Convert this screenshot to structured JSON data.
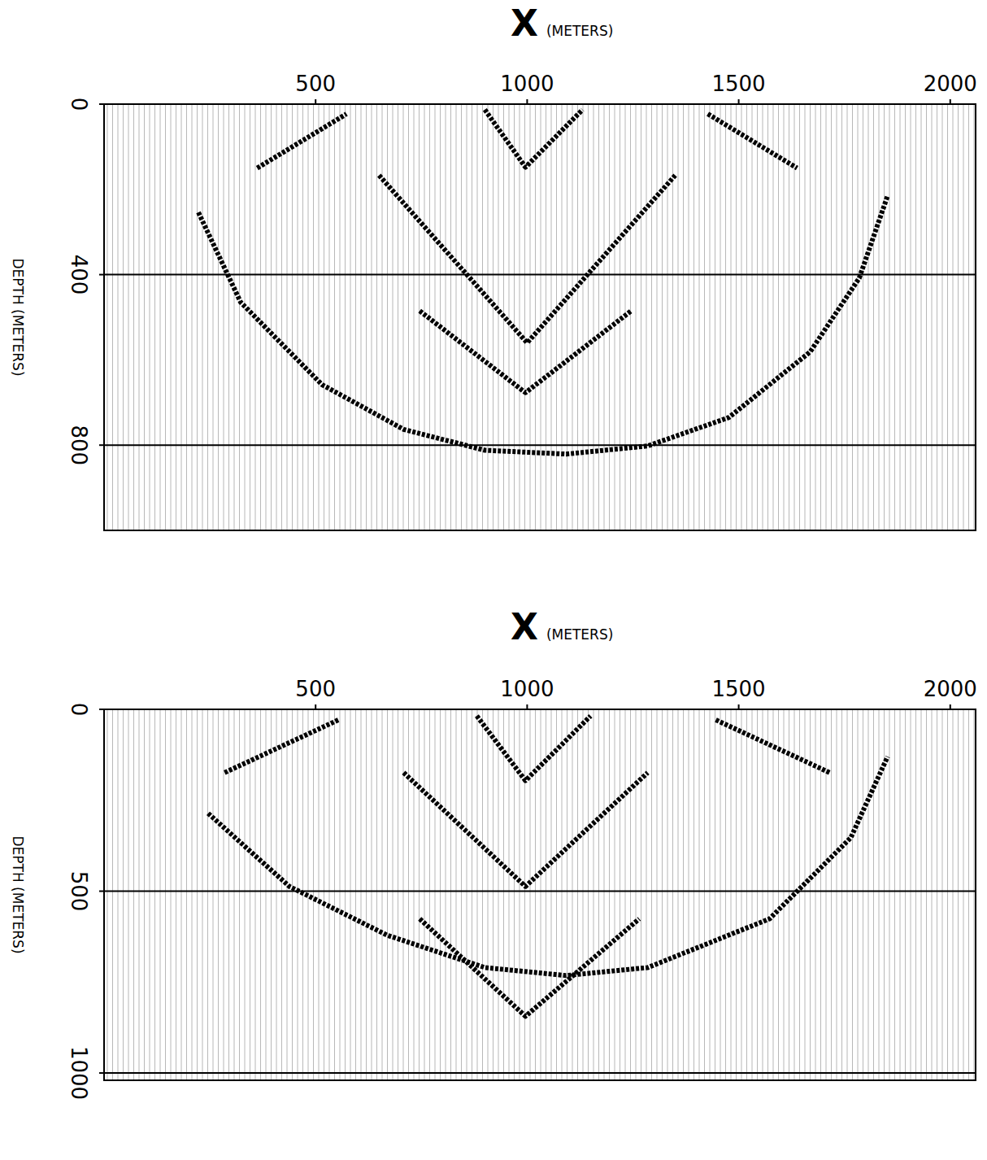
{
  "chart_data": [
    {
      "type": "line",
      "x_label": "X",
      "x_label_unit": "(METERS)",
      "y_label": "DEPTH (METERS)",
      "xlim": [
        0,
        2060
      ],
      "xticks": [
        500,
        1000,
        1500,
        2000
      ],
      "ylim": [
        0,
        1000
      ],
      "yticks": [
        0,
        400,
        800
      ],
      "grid": true,
      "series": [
        {
          "color": "#000000",
          "line_style": "dashed",
          "x": [
            223,
            323,
            515,
            708,
            900,
            1092,
            1285,
            1477,
            1669,
            1785,
            1852
          ],
          "values": [
            254,
            465,
            658,
            763,
            812,
            821,
            802,
            735,
            581,
            408,
            215
          ]
        },
        {
          "color": "#000000",
          "line_style": "dashed",
          "x": [
            362,
            573
          ],
          "values": [
            150,
            23
          ]
        },
        {
          "color": "#000000",
          "line_style": "dashed",
          "x": [
            1427,
            1638
          ],
          "values": [
            23,
            150
          ]
        },
        {
          "color": "#000000",
          "line_style": "dashed",
          "x": [
            900,
            996,
            1131
          ],
          "values": [
            13,
            148,
            13
          ]
        },
        {
          "color": "#000000",
          "line_style": "dashed",
          "x": [
            650,
            1000,
            1350
          ],
          "values": [
            167,
            560,
            167
          ]
        },
        {
          "color": "#000000",
          "line_style": "dashed",
          "x": [
            746,
            996,
            1246
          ],
          "values": [
            485,
            677,
            485
          ]
        }
      ]
    },
    {
      "type": "line",
      "x_label": "X",
      "x_label_unit": "(METERS)",
      "y_label": "DEPTH (METERS)",
      "xlim": [
        0,
        2060
      ],
      "xticks": [
        500,
        1000,
        1500,
        2000
      ],
      "ylim": [
        0,
        1020
      ],
      "yticks": [
        0,
        500,
        1000
      ],
      "grid": true,
      "series": [
        {
          "color": "#000000",
          "line_style": "dashed",
          "x": [
            246,
            438,
            669,
            900,
            1092,
            1285,
            1573,
            1765,
            1852
          ],
          "values": [
            286,
            487,
            621,
            710,
            732,
            710,
            576,
            353,
            130
          ]
        },
        {
          "color": "#000000",
          "line_style": "dashed",
          "x": [
            285,
            554
          ],
          "values": [
            174,
            29
          ]
        },
        {
          "color": "#000000",
          "line_style": "dashed",
          "x": [
            1446,
            1715
          ],
          "values": [
            29,
            174
          ]
        },
        {
          "color": "#000000",
          "line_style": "dashed",
          "x": [
            881,
            996,
            1150
          ],
          "values": [
            18,
            196,
            18
          ]
        },
        {
          "color": "#000000",
          "line_style": "dashed",
          "x": [
            708,
            996,
            1285
          ],
          "values": [
            174,
            487,
            174
          ]
        },
        {
          "color": "#000000",
          "line_style": "dashed",
          "x": [
            746,
            996,
            1265
          ],
          "values": [
            576,
            844,
            576
          ]
        }
      ]
    }
  ]
}
